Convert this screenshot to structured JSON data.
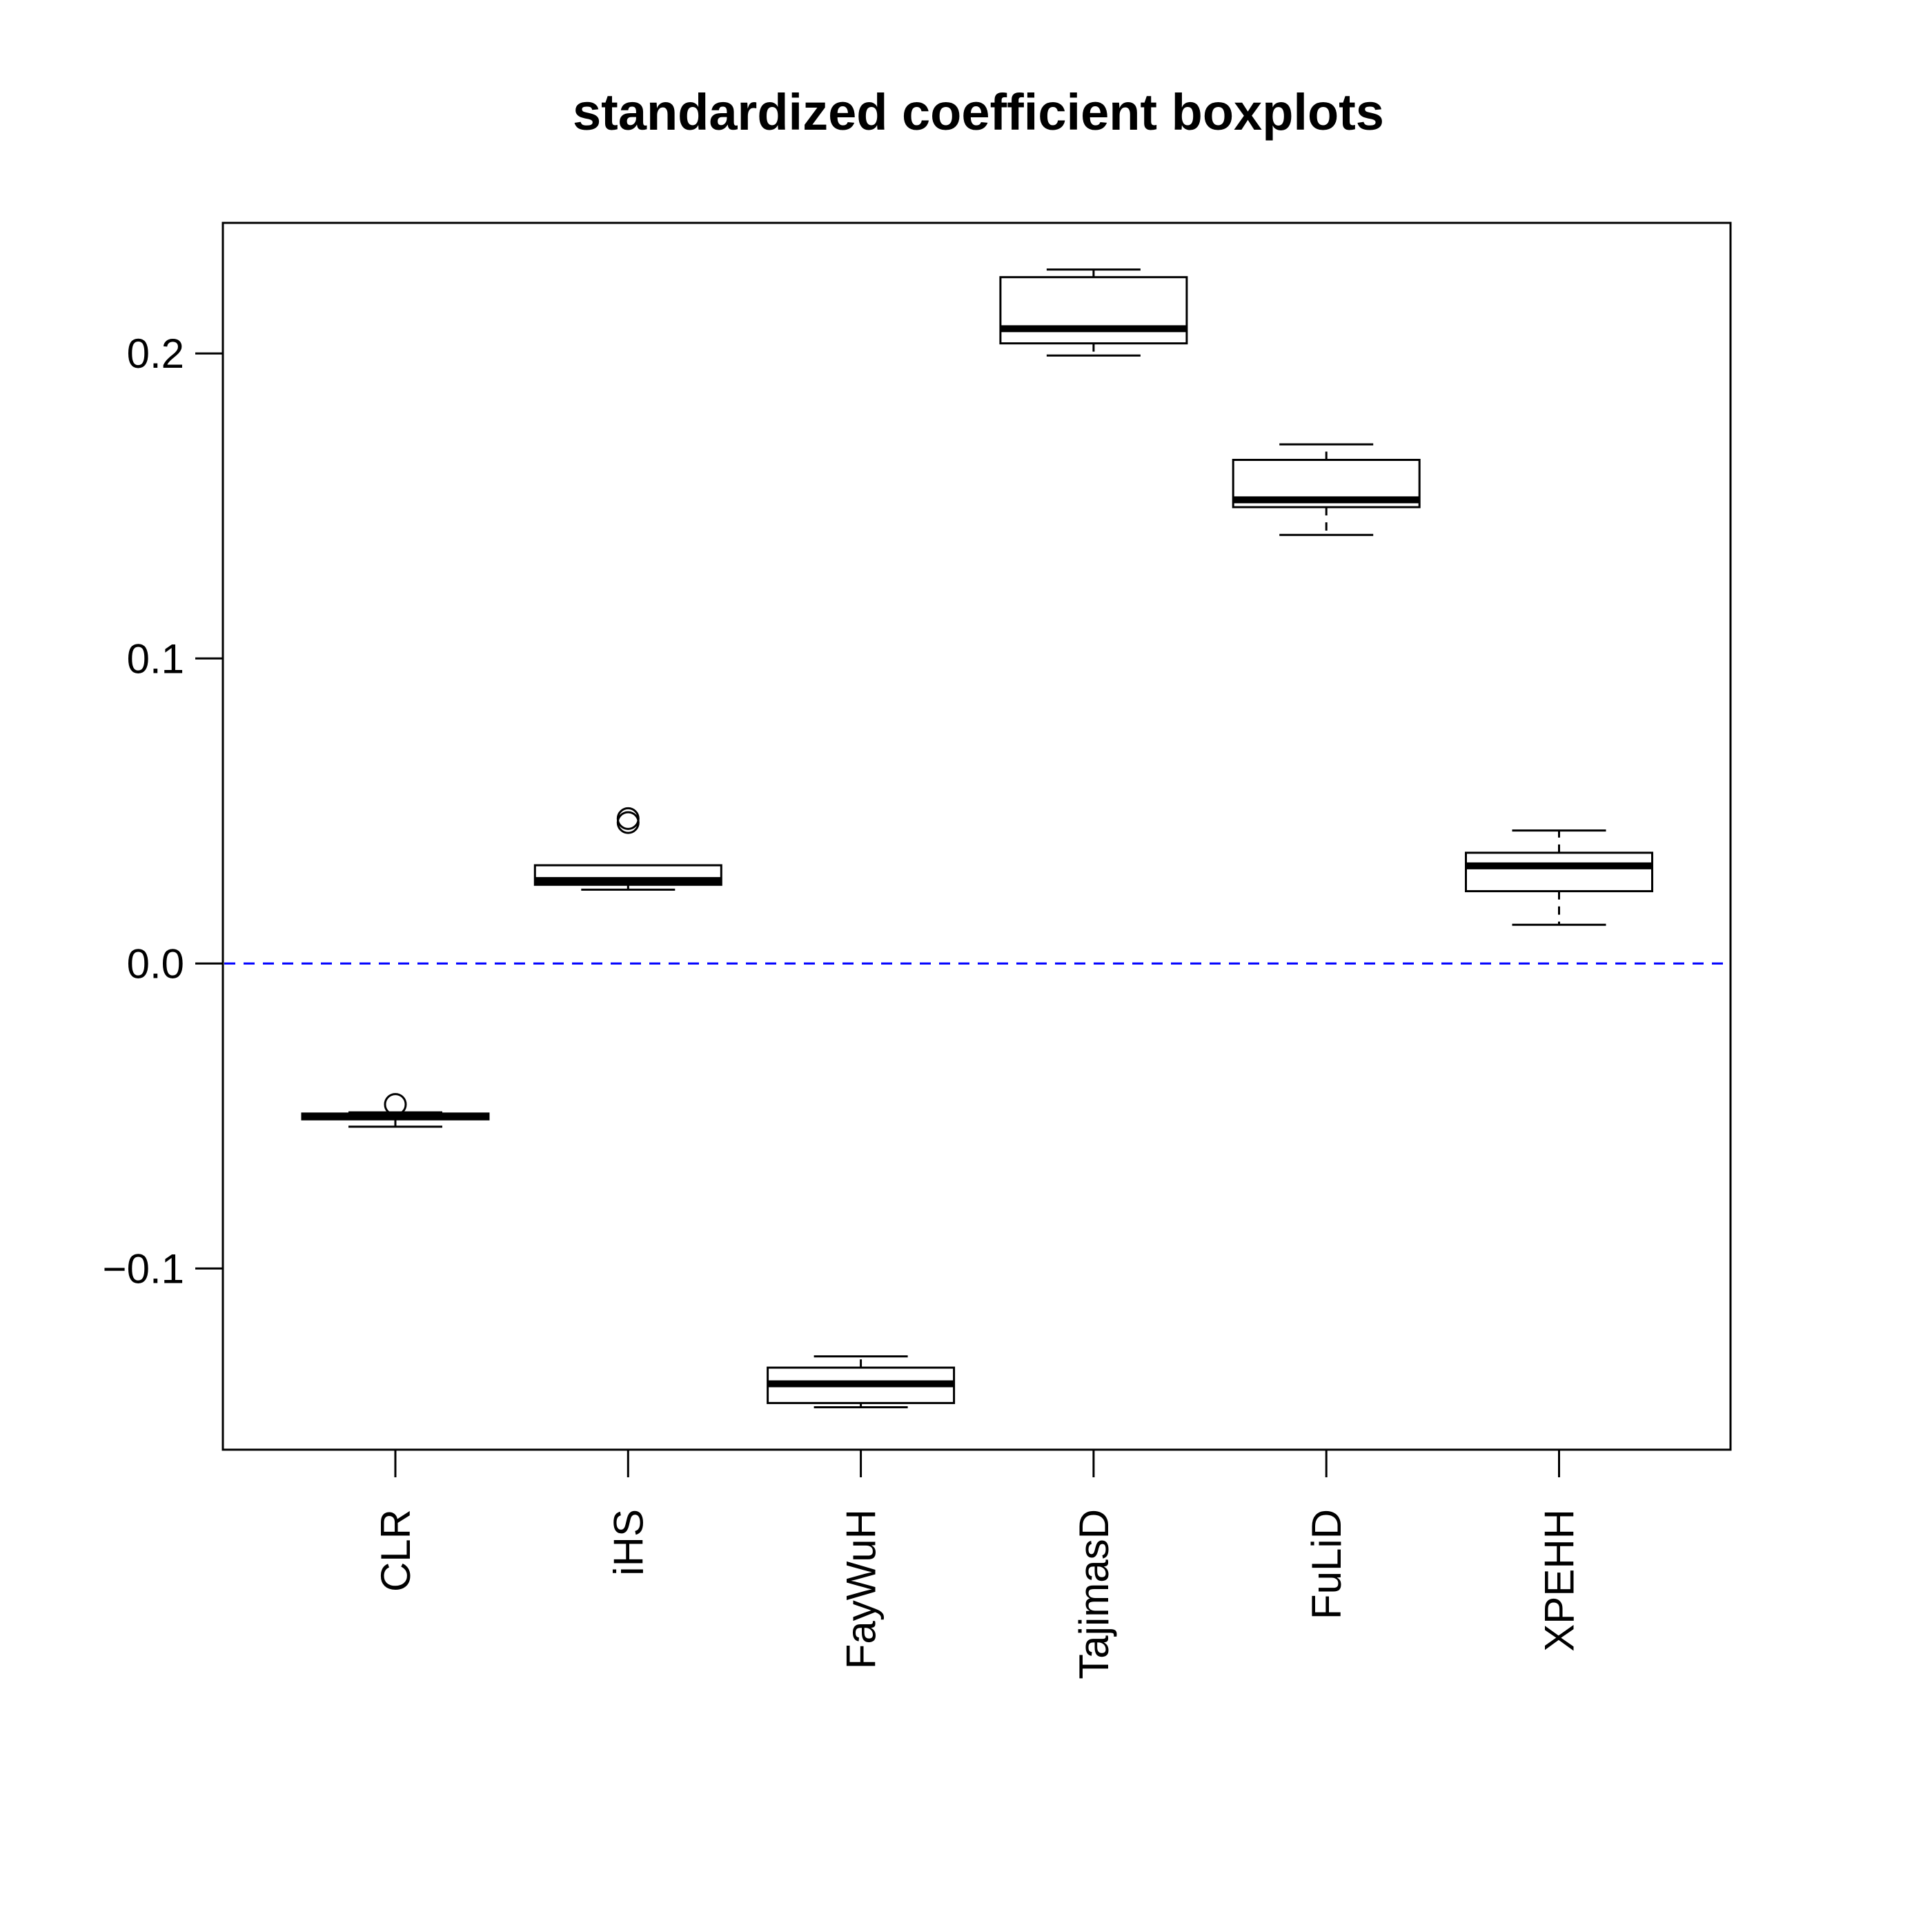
{
  "chart_data": {
    "type": "boxplot",
    "title": "standardized coefficient boxplots",
    "xlabel": "",
    "ylabel": "",
    "categories": [
      "CLR",
      "iHS",
      "FayWuH",
      "TajimasD",
      "FuLiD",
      "XPEHH"
    ],
    "y_ticks": [
      -0.1,
      0.0,
      0.1,
      0.2
    ],
    "y_tick_labels": [
      "−0.1",
      "0.0",
      "0.1",
      "0.2"
    ],
    "ylim": [
      -0.1594,
      0.2428
    ],
    "grid": false,
    "legend": "none",
    "reference_line": {
      "y": 0.0,
      "style": "dashed",
      "color": "#0000ff"
    },
    "colors": {
      "box_stroke": "#000000",
      "box_fill": "#ffffff",
      "reference_line": "#0000ff"
    },
    "boxes": [
      {
        "name": "CLR",
        "whisker_low": -0.0535,
        "q1": -0.0511,
        "median": -0.0502,
        "q3": -0.0492,
        "whisker_high": -0.0488,
        "outliers": [
          -0.0462
        ]
      },
      {
        "name": "iHS",
        "whisker_low": 0.0242,
        "q1": 0.0258,
        "median": 0.0272,
        "q3": 0.0322,
        "whisker_high": 0.0322,
        "outliers": [
          0.0462,
          0.0475
        ]
      },
      {
        "name": "FayWuH",
        "whisker_low": -0.1455,
        "q1": -0.1441,
        "median": -0.1378,
        "q3": -0.1325,
        "whisker_high": -0.1288,
        "outliers": []
      },
      {
        "name": "TajimasD",
        "whisker_low": 0.1993,
        "q1": 0.2033,
        "median": 0.2081,
        "q3": 0.225,
        "whisker_high": 0.2275,
        "outliers": []
      },
      {
        "name": "FuLiD",
        "whisker_low": 0.1405,
        "q1": 0.1496,
        "median": 0.152,
        "q3": 0.1651,
        "whisker_high": 0.1702,
        "outliers": []
      },
      {
        "name": "XPEHH",
        "whisker_low": 0.0127,
        "q1": 0.0237,
        "median": 0.032,
        "q3": 0.0363,
        "whisker_high": 0.0436,
        "outliers": []
      }
    ]
  }
}
